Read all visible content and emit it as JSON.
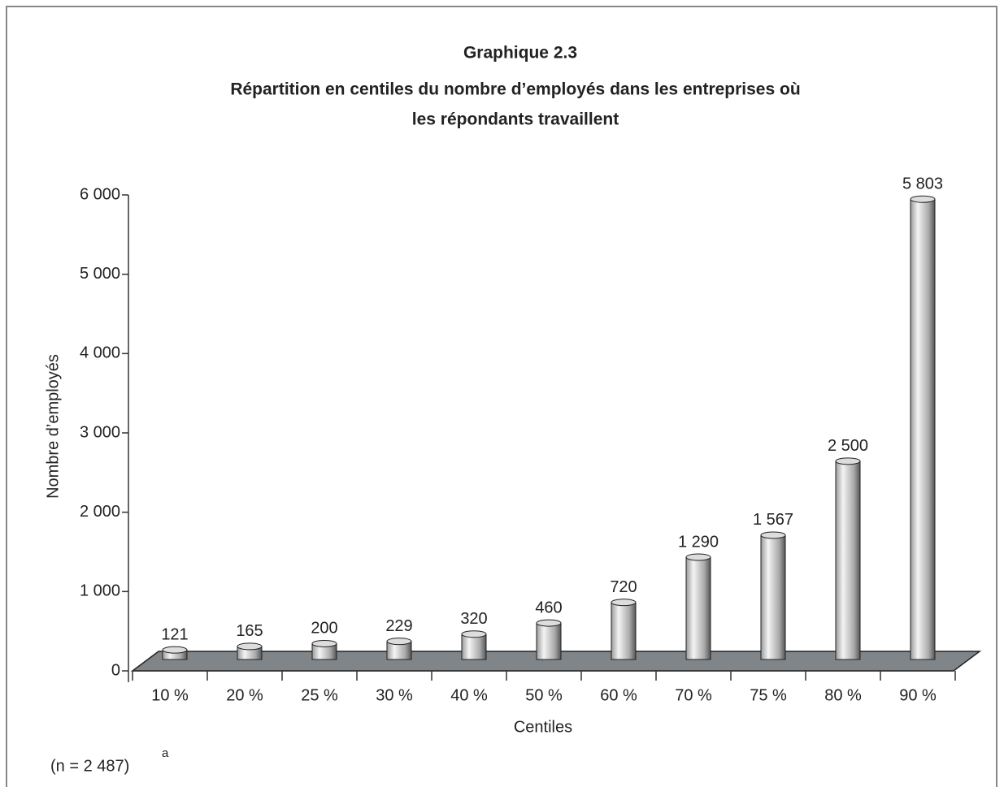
{
  "chart_data": {
    "type": "bar",
    "title": "Graphique 2.3",
    "subtitle": [
      "Répartition en centiles du nombre d’employés dans les entreprises où",
      "les répondants travaillent"
    ],
    "x_label": "Centiles",
    "y_label": "Nombre d’employés",
    "annotation": "(n = 2 487)",
    "annotation_superscript": "a",
    "categories": [
      "10 %",
      "20 %",
      "25 %",
      "30 %",
      "40 %",
      "50 %",
      "60 %",
      "70 %",
      "75 %",
      "80 %",
      "90 %"
    ],
    "values": [
      121,
      165,
      200,
      229,
      320,
      460,
      720,
      1290,
      1567,
      2500,
      5803
    ],
    "value_labels": [
      "121",
      "165",
      "200",
      "229",
      "320",
      "460",
      "720",
      "1 290",
      "1 567",
      "2 500",
      "5 803"
    ],
    "color": "#b0b0b0",
    "ylim": [
      0,
      6000
    ],
    "yticks": [
      0,
      {
        "value": 1000,
        "label": "1 000"
      },
      {
        "value": 2000,
        "label": "2 000"
      },
      {
        "value": 3000,
        "label": "3 000"
      },
      {
        "value": 4000,
        "label": "4 000"
      },
      {
        "value": 5000,
        "label": "5 000"
      },
      {
        "value": 6000,
        "label": "6 000"
      }
    ]
  }
}
